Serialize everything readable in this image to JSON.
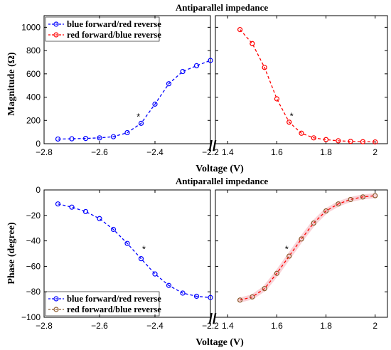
{
  "chart_data": [
    {
      "type": "line",
      "title": "Antiparallel impedance",
      "xlabel": "Voltage (V)",
      "ylabel": "Magnitude (Ω)",
      "ylim": [
        0,
        1100
      ],
      "yticks": [
        "0",
        "200",
        "400",
        "600",
        "800",
        "1000"
      ],
      "axis_break_mark": "//",
      "legend": {
        "placement": "top-left",
        "entries": [
          "blue forward/red reverse",
          "red forward/blue reverse"
        ]
      },
      "panels": [
        {
          "xlim": [
            -2.8,
            -2.2
          ],
          "xticks": [
            "-2.8",
            "-2.6",
            "-2.4",
            "-2.2"
          ],
          "series": [
            {
              "name": "blue forward/red reverse",
              "color": "#0000ff",
              "x": [
                -2.75,
                -2.7,
                -2.65,
                -2.6,
                -2.55,
                -2.5,
                -2.45,
                -2.4,
                -2.35,
                -2.3,
                -2.25,
                -2.2
              ],
              "y": [
                40,
                42,
                45,
                50,
                60,
                95,
                175,
                340,
                515,
                620,
                670,
                715
              ]
            }
          ],
          "annotations": [
            {
              "text": "*",
              "x": -2.46,
              "y": 205
            }
          ]
        },
        {
          "xlim": [
            1.35,
            2.05
          ],
          "xticks": [
            "1.4",
            "1.6",
            "1.8",
            "2"
          ],
          "series": [
            {
              "name": "red forward/blue reverse",
              "color": "#ff0000",
              "x": [
                1.45,
                1.5,
                1.55,
                1.6,
                1.65,
                1.7,
                1.75,
                1.8,
                1.85,
                1.9,
                1.95,
                2.0
              ],
              "y": [
                980,
                860,
                655,
                385,
                185,
                90,
                50,
                35,
                25,
                20,
                17,
                15
              ]
            }
          ],
          "annotations": [
            {
              "text": "*",
              "x": 1.66,
              "y": 210
            }
          ]
        }
      ]
    },
    {
      "type": "line",
      "title": "Antiparallel impedance",
      "xlabel": "Voltage (V)",
      "ylabel": "Phase (degree)",
      "ylim": [
        -100,
        0
      ],
      "yticks": [
        "-100",
        "-80",
        "-60",
        "-40",
        "-20",
        "0"
      ],
      "axis_break_mark": "//",
      "legend": {
        "placement": "bottom-left",
        "entries": [
          "blue forward/red reverse",
          "red forward/blue reverse"
        ]
      },
      "panels": [
        {
          "xlim": [
            -2.8,
            -2.2
          ],
          "xticks": [
            "-2.8",
            "-2.6",
            "-2.4",
            "-2.2"
          ],
          "series": [
            {
              "name": "blue forward/red reverse",
              "color": "#0000ff",
              "x": [
                -2.75,
                -2.7,
                -2.65,
                -2.6,
                -2.55,
                -2.5,
                -2.45,
                -2.4,
                -2.35,
                -2.3,
                -2.25,
                -2.2
              ],
              "y": [
                -11,
                -13.5,
                -17,
                -22.5,
                -31,
                -42,
                -54,
                -66,
                -75,
                -81,
                -83.5,
                -84.5
              ]
            }
          ],
          "annotations": [
            {
              "text": "*",
              "x": -2.44,
              "y": -49
            }
          ]
        },
        {
          "xlim": [
            1.35,
            2.05
          ],
          "xticks": [
            "1.4",
            "1.6",
            "1.8",
            "2"
          ],
          "series": [
            {
              "name": "red forward/blue reverse",
              "color": "#ff0000",
              "marker_face": "#8b5a2b",
              "x": [
                1.45,
                1.5,
                1.55,
                1.6,
                1.65,
                1.7,
                1.75,
                1.8,
                1.85,
                1.9,
                1.95,
                2.0
              ],
              "y": [
                -86.5,
                -84,
                -77.5,
                -65.5,
                -52,
                -38.5,
                -26,
                -16.5,
                -11,
                -7.5,
                -5.5,
                -4.5
              ]
            }
          ],
          "annotations": [
            {
              "text": "*",
              "x": 1.64,
              "y": -49
            }
          ]
        }
      ]
    }
  ]
}
